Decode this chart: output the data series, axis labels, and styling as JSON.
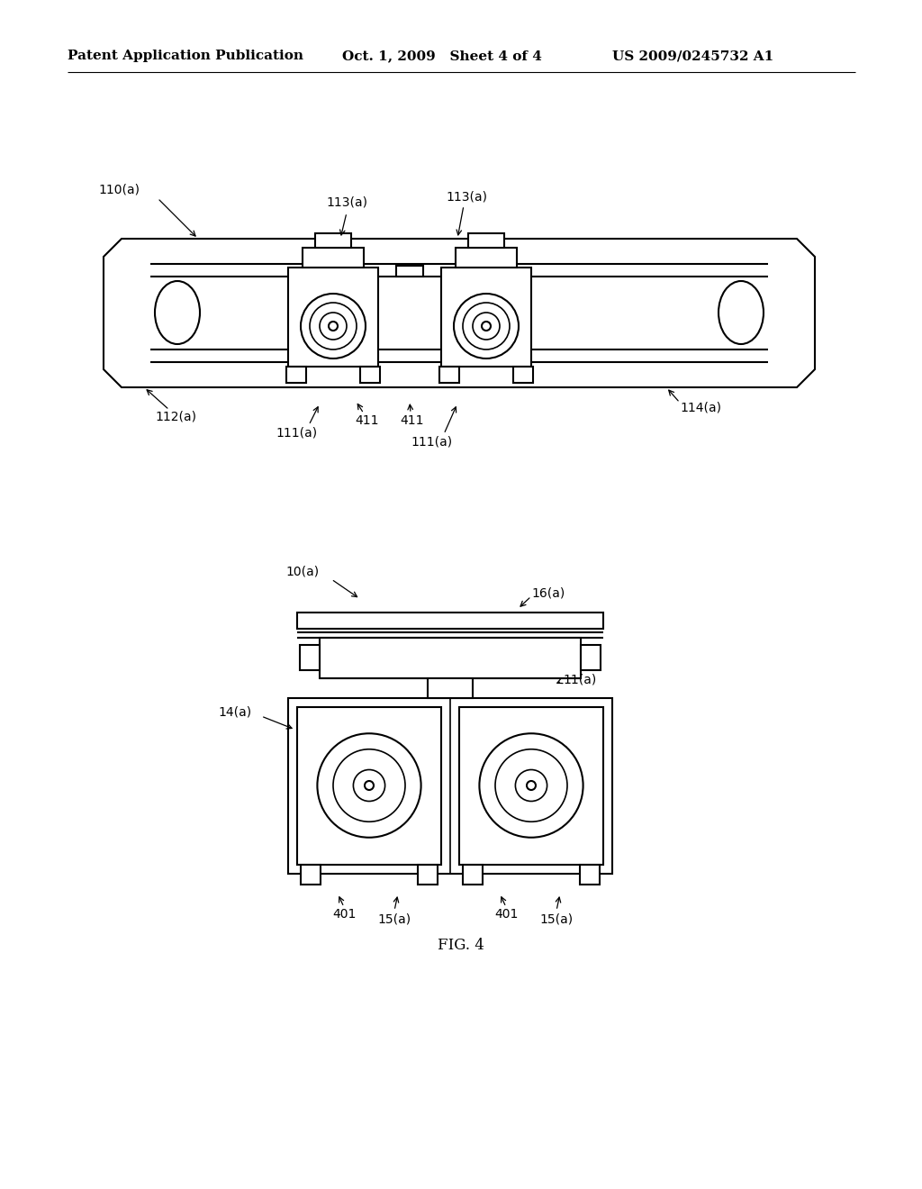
{
  "background_color": "#ffffff",
  "header_left": "Patent Application Publication",
  "header_mid": "Oct. 1, 2009   Sheet 4 of 4",
  "header_right": "US 2009/0245732 A1",
  "fig_label": "FIG. 4",
  "header_fontsize": 11,
  "label_fontsize": 10,
  "line_color": "#000000",
  "line_width": 1.5
}
